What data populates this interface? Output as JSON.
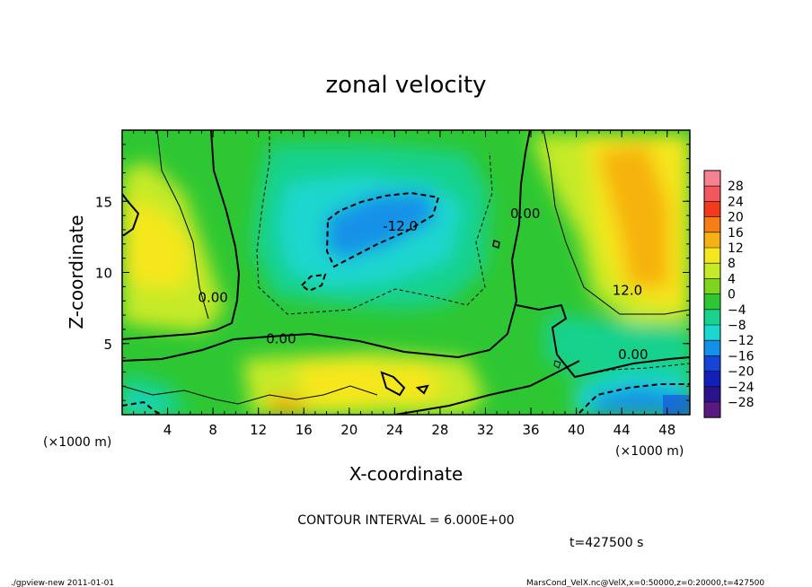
{
  "chart_data": {
    "type": "heatmap",
    "title": "zonal velocity",
    "xlabel": "X-coordinate",
    "ylabel": "Z-coordinate",
    "x_unit": "(×1000 m)",
    "x_unit_right": "(×1000 m)",
    "xlim": [
      0,
      50
    ],
    "ylim": [
      0,
      20
    ],
    "x_ticks": [
      "4",
      "8",
      "12",
      "16",
      "20",
      "24",
      "28",
      "32",
      "36",
      "40",
      "44",
      "48"
    ],
    "y_ticks": [
      "5",
      "10",
      "15"
    ],
    "colorbar": {
      "levels": [
        "28",
        "24",
        "20",
        "16",
        "12",
        "8",
        "4",
        "0",
        "−4",
        "−8",
        "−12",
        "−16",
        "−20",
        "−24",
        "−28"
      ],
      "colors": [
        "#f7828f",
        "#f2565e",
        "#f43a1c",
        "#f57e16",
        "#f6b210",
        "#f5e71d",
        "#c6ea27",
        "#7ed61c",
        "#2ec733",
        "#19d28d",
        "#1ad7cf",
        "#1391e8",
        "#1544d9",
        "#121fb8",
        "#2b138d",
        "#5b1a7f"
      ]
    },
    "contour_labels": [
      {
        "text": "0.00",
        "x": 8,
        "y": 8.3
      },
      {
        "text": "0.00",
        "x": 14,
        "y": 5.4
      },
      {
        "text": "0.00",
        "x": 35.5,
        "y": 14.2
      },
      {
        "text": "0.00",
        "x": 45,
        "y": 4.3
      },
      {
        "text": "-12.0",
        "x": 24.5,
        "y": 13.3
      },
      {
        "text": "12.0",
        "x": 44.5,
        "y": 8.8
      }
    ],
    "contour_interval": "CONTOUR INTERVAL = 6.000E+00",
    "time": "t=427500 s"
  },
  "footer": {
    "left": "./gpview-new   2011-01-01",
    "right": "MarsCond_VelX.nc@VelX,x=0:50000,z=0:20000,t=427500"
  }
}
